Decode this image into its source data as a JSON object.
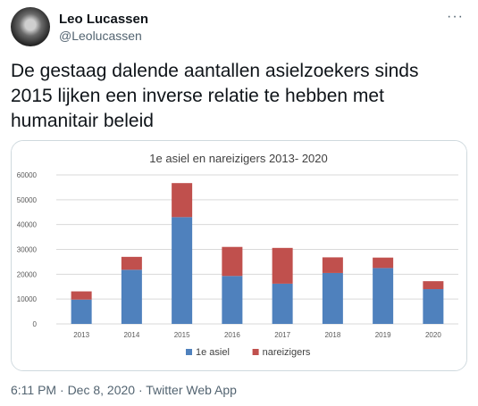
{
  "user": {
    "display_name": "Leo Lucassen",
    "handle": "@Leolucassen"
  },
  "more_icon": "···",
  "tweet": {
    "text": "De gestaag dalende aantallen asielzoekers sinds 2015 lijken een inverse relatie te hebben met humanitair beleid"
  },
  "meta": {
    "time": "6:11 PM",
    "date": "Dec 8, 2020",
    "source": "Twitter Web App",
    "separator": "·"
  },
  "chart_data": {
    "type": "bar",
    "stacked": true,
    "title": "1e asiel en nareizigers 2013- 2020",
    "categories": [
      "2013",
      "2014",
      "2015",
      "2016",
      "2017",
      "2018",
      "2019",
      "2020"
    ],
    "series": [
      {
        "name": "1e asiel",
        "color": "#4f81bd",
        "values": [
          9800,
          21800,
          43000,
          19300,
          16200,
          20500,
          22500,
          14000
        ]
      },
      {
        "name": "nareizigers",
        "color": "#c0504d",
        "values": [
          3300,
          5200,
          13700,
          11700,
          14400,
          6300,
          4200,
          3200
        ]
      }
    ],
    "yticks": [
      "0",
      "10000",
      "20000",
      "30000",
      "40000",
      "50000",
      "60000"
    ],
    "ylim": [
      0,
      60000
    ],
    "grid": true,
    "legend_position": "bottom"
  }
}
